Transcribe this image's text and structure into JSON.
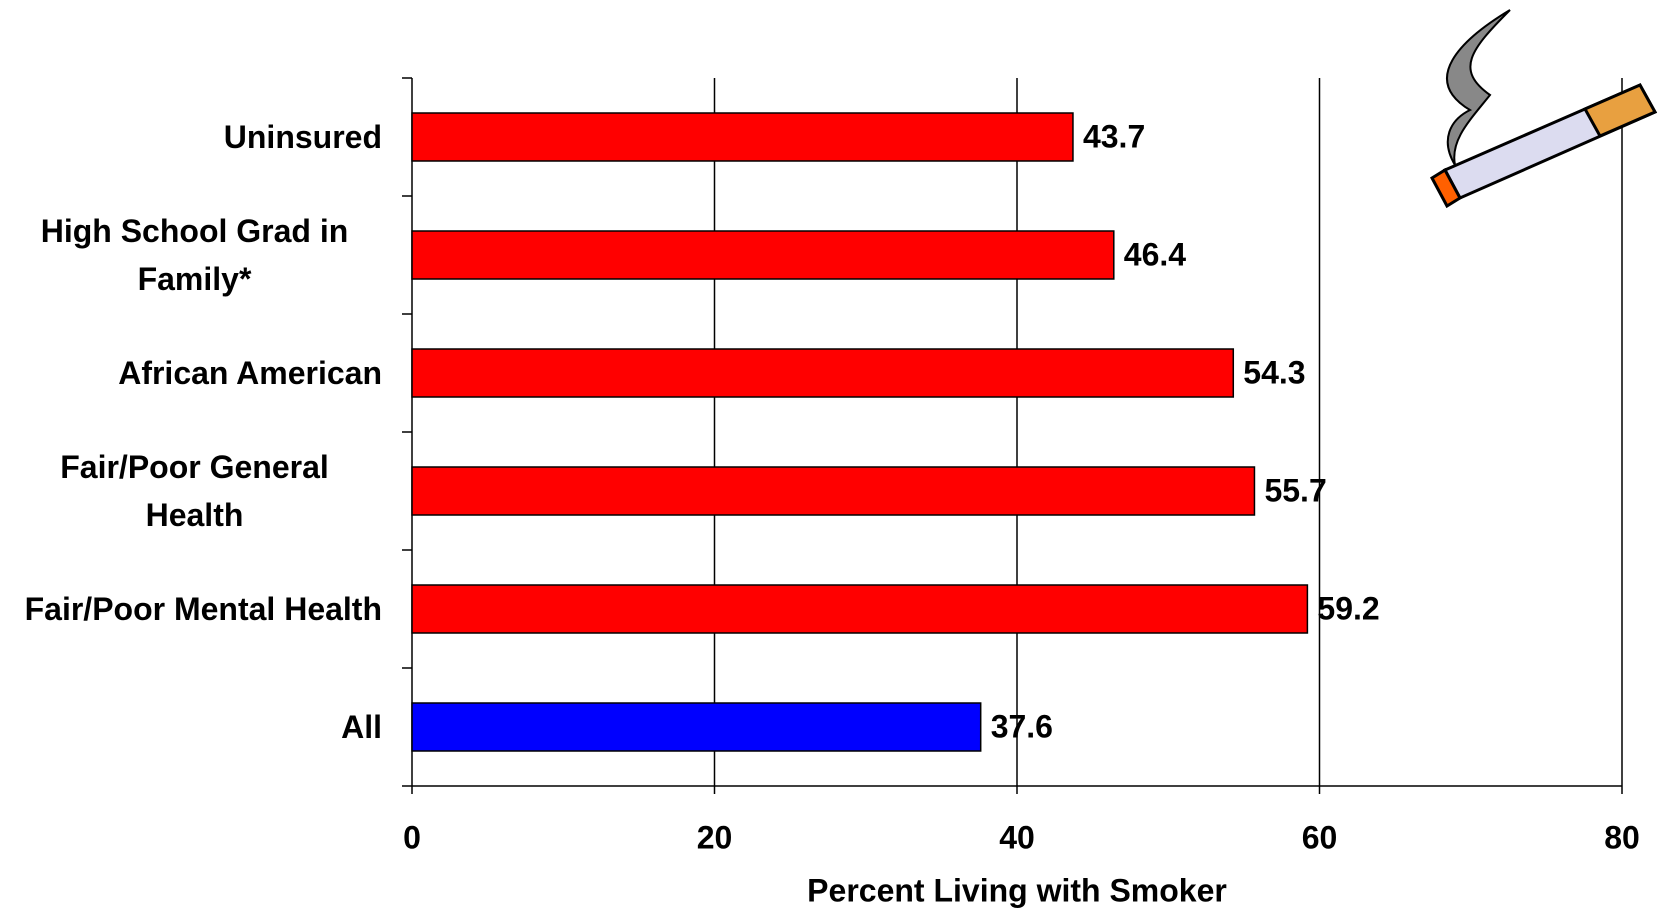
{
  "chart_data": {
    "type": "hbar",
    "categories": [
      "Uninsured",
      "High School Grad in Family*",
      "African American",
      "Fair/Poor General Health",
      "Fair/Poor Mental Health",
      "All"
    ],
    "values": [
      43.7,
      46.4,
      54.3,
      55.7,
      59.2,
      37.6
    ],
    "colors": [
      "#ff0000",
      "#ff0000",
      "#ff0000",
      "#ff0000",
      "#ff0000",
      "#0000ff"
    ],
    "xlabel": "Percent Living with Smoker",
    "xlim": [
      0,
      80
    ],
    "xticks": [
      0,
      20,
      40,
      60,
      80
    ],
    "grid": true
  }
}
